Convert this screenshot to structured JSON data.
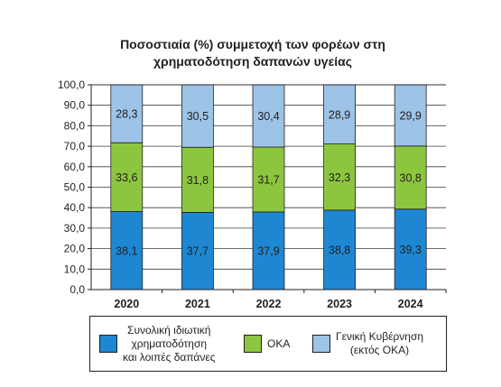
{
  "chart_data": {
    "type": "stacked-bar",
    "title_lines": [
      "Ποσοστιαία (%) συμμετοχή των φορέων στη",
      "χρηματοδότηση δαπανών υγείας"
    ],
    "categories": [
      "2020",
      "2021",
      "2022",
      "2023",
      "2024"
    ],
    "ylim": [
      0,
      100
    ],
    "yticks": [
      "0,0",
      "10,0",
      "20,0",
      "30,0",
      "40,0",
      "50,0",
      "60,0",
      "70,0",
      "80,0",
      "90,0",
      "100,0"
    ],
    "grid": true,
    "legend_position": "bottom",
    "series": [
      {
        "name": "Συνολική ιδιωτική χρηματοδότηση και λοιπές δαπάνες",
        "name_lines": [
          "Συνολική ιδιωτική",
          "χρηματοδότηση",
          "και λοιπές δαπάνες"
        ],
        "color": "#1e87d2",
        "values": [
          38.1,
          37.7,
          37.9,
          38.8,
          39.3
        ],
        "labels": [
          "38,1",
          "37,7",
          "37,9",
          "38,8",
          "39,3"
        ]
      },
      {
        "name": "ΟΚΑ",
        "name_lines": [
          "ΟΚΑ"
        ],
        "color": "#8cc63f",
        "values": [
          33.6,
          31.8,
          31.7,
          32.3,
          30.8
        ],
        "labels": [
          "33,6",
          "31,8",
          "31,7",
          "32,3",
          "30,8"
        ]
      },
      {
        "name": "Γενική Κυβέρνηση (εκτός ΟΚΑ)",
        "name_lines": [
          "Γενική Κυβέρνηση",
          "(εκτός ΟΚΑ)"
        ],
        "color": "#9dc3e6",
        "values": [
          28.3,
          30.5,
          30.4,
          28.9,
          29.9
        ],
        "labels": [
          "28,3",
          "30,5",
          "30,4",
          "28,9",
          "29,9"
        ]
      }
    ]
  }
}
